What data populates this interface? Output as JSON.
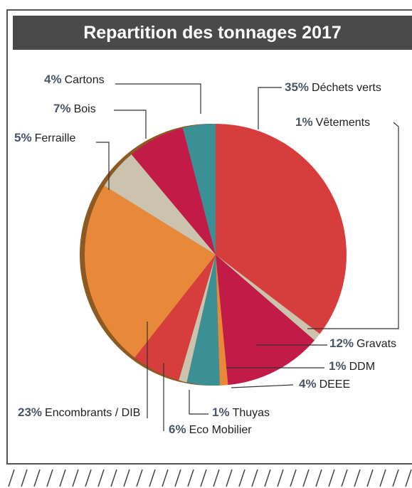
{
  "chart_data": {
    "type": "pie",
    "title": "Repartition des tonnages 2017",
    "categories": [
      "Déchets verts",
      "Vêtements",
      "Gravats",
      "DDM",
      "DEEE",
      "Thuyas",
      "Eco Mobilier",
      "Encombrants / DIB",
      "Ferraille",
      "Bois",
      "Cartons"
    ],
    "values": [
      35,
      1,
      12,
      1,
      4,
      1,
      6,
      23,
      5,
      7,
      4
    ],
    "value_labels": [
      "35%",
      "1%",
      "12%",
      "1%",
      "4%",
      "1%",
      "6%",
      "23%",
      "5%",
      "7%",
      "4%"
    ],
    "colors": [
      "#d83d3d",
      "#cbc3ae",
      "#c21b47",
      "#e8893a",
      "#3b9096",
      "#cbc3ae",
      "#d83d3d",
      "#e8893a",
      "#cbc3ae",
      "#c21b47",
      "#3b9096"
    ]
  }
}
